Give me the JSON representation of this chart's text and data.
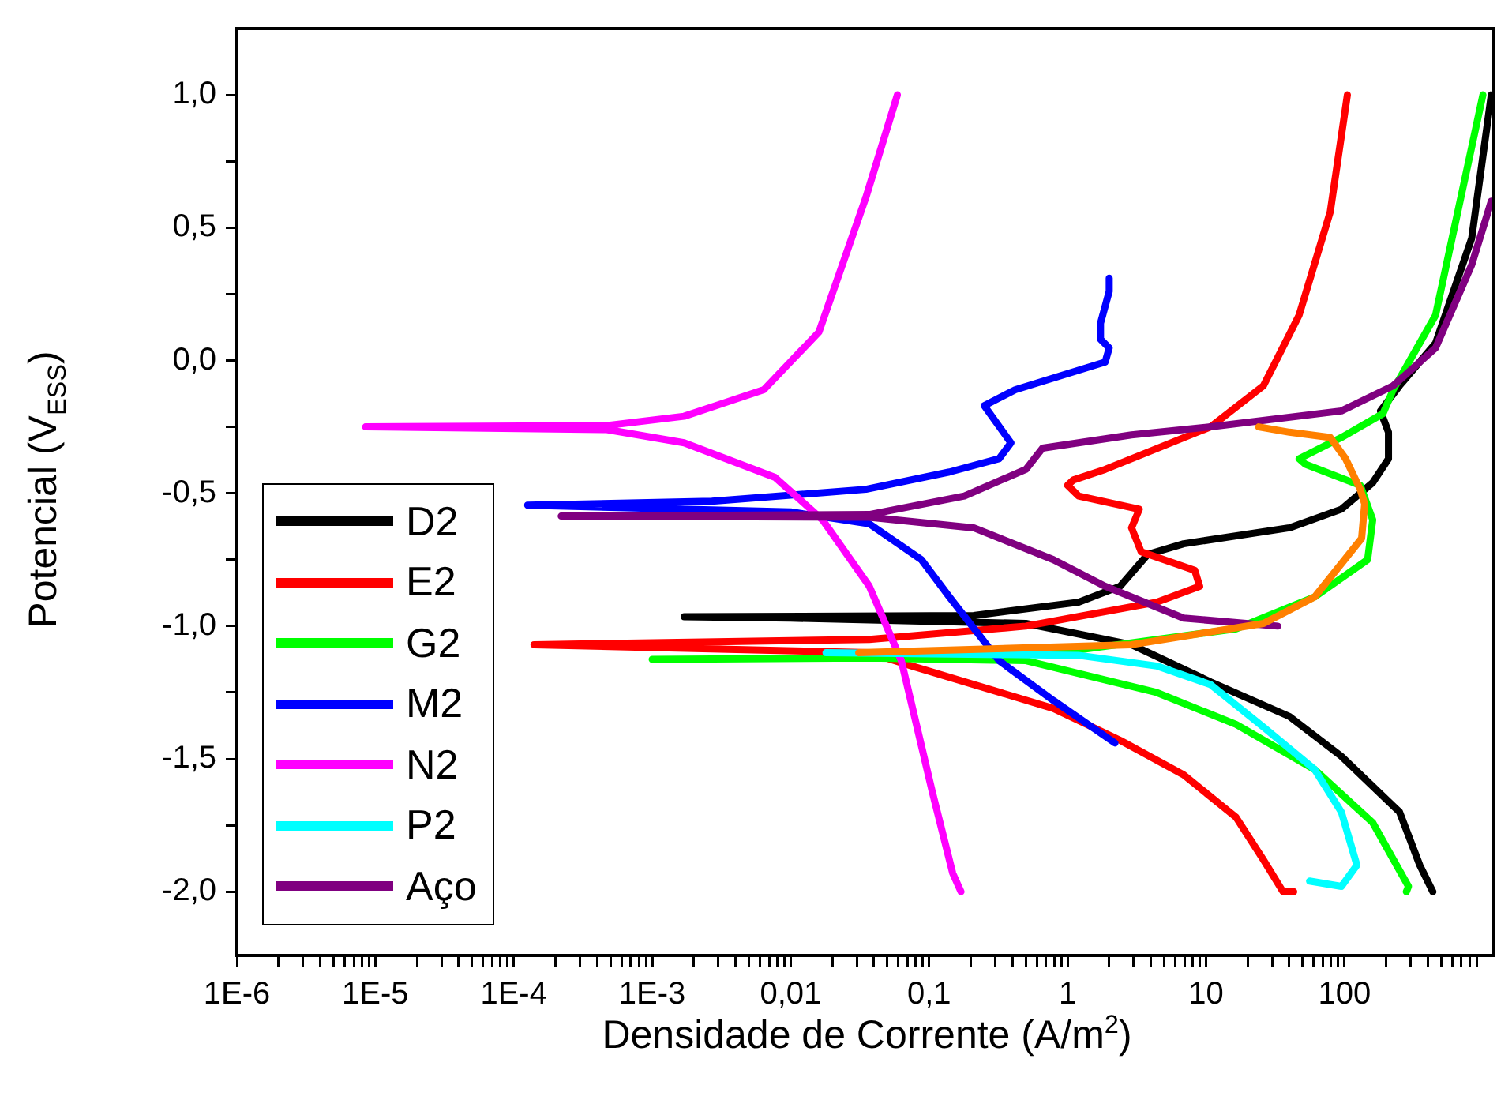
{
  "chart_data": {
    "type": "line",
    "xlabel": "Densidade de Corrente (A/m$^{2}$)",
    "ylabel": "Potencial (V$_{ESS}$)",
    "log": "x",
    "xlim": [
      1e-06,
      1200
    ],
    "ylim": [
      -2.24,
      1.25
    ],
    "xticks": [
      {
        "value": 1e-06,
        "label": "1E-6"
      },
      {
        "value": 2e-06,
        "label": null
      },
      {
        "value": 3e-06,
        "label": null
      },
      {
        "value": 4e-06,
        "label": null
      },
      {
        "value": 5e-06,
        "label": null
      },
      {
        "value": 6e-06,
        "label": null
      },
      {
        "value": 7e-06,
        "label": null
      },
      {
        "value": 8e-06,
        "label": null
      },
      {
        "value": 9e-06,
        "label": null
      },
      {
        "value": 1e-05,
        "label": "1E-5"
      },
      {
        "value": 2e-05,
        "label": null
      },
      {
        "value": 3e-05,
        "label": null
      },
      {
        "value": 4e-05,
        "label": null
      },
      {
        "value": 5e-05,
        "label": null
      },
      {
        "value": 6e-05,
        "label": null
      },
      {
        "value": 7e-05,
        "label": null
      },
      {
        "value": 8e-05,
        "label": null
      },
      {
        "value": 9e-05,
        "label": null
      },
      {
        "value": 0.0001,
        "label": "1E-4"
      },
      {
        "value": 0.0002,
        "label": null
      },
      {
        "value": 0.0003,
        "label": null
      },
      {
        "value": 0.0004,
        "label": null
      },
      {
        "value": 0.0005,
        "label": null
      },
      {
        "value": 0.0006,
        "label": null
      },
      {
        "value": 0.0007,
        "label": null
      },
      {
        "value": 0.0008,
        "label": null
      },
      {
        "value": 0.0009,
        "label": null
      },
      {
        "value": 0.001,
        "label": "1E-3"
      },
      {
        "value": 0.002,
        "label": null
      },
      {
        "value": 0.003,
        "label": null
      },
      {
        "value": 0.004,
        "label": null
      },
      {
        "value": 0.005,
        "label": null
      },
      {
        "value": 0.006,
        "label": null
      },
      {
        "value": 0.007,
        "label": null
      },
      {
        "value": 0.008,
        "label": null
      },
      {
        "value": 0.009,
        "label": null
      },
      {
        "value": 0.01,
        "label": "0,01"
      },
      {
        "value": 0.02,
        "label": null
      },
      {
        "value": 0.03,
        "label": null
      },
      {
        "value": 0.04,
        "label": null
      },
      {
        "value": 0.05,
        "label": null
      },
      {
        "value": 0.06,
        "label": null
      },
      {
        "value": 0.07,
        "label": null
      },
      {
        "value": 0.08,
        "label": null
      },
      {
        "value": 0.09,
        "label": null
      },
      {
        "value": 0.1,
        "label": "0,1"
      },
      {
        "value": 0.2,
        "label": null
      },
      {
        "value": 0.3,
        "label": null
      },
      {
        "value": 0.4,
        "label": null
      },
      {
        "value": 0.5,
        "label": null
      },
      {
        "value": 0.6,
        "label": null
      },
      {
        "value": 0.7,
        "label": null
      },
      {
        "value": 0.8,
        "label": null
      },
      {
        "value": 0.9,
        "label": null
      },
      {
        "value": 1,
        "label": "1"
      },
      {
        "value": 2,
        "label": null
      },
      {
        "value": 3,
        "label": null
      },
      {
        "value": 4,
        "label": null
      },
      {
        "value": 5,
        "label": null
      },
      {
        "value": 6,
        "label": null
      },
      {
        "value": 7,
        "label": null
      },
      {
        "value": 8,
        "label": null
      },
      {
        "value": 9,
        "label": null
      },
      {
        "value": 10,
        "label": "10"
      },
      {
        "value": 20,
        "label": null
      },
      {
        "value": 30,
        "label": null
      },
      {
        "value": 40,
        "label": null
      },
      {
        "value": 50,
        "label": null
      },
      {
        "value": 60,
        "label": null
      },
      {
        "value": 70,
        "label": null
      },
      {
        "value": 80,
        "label": null
      },
      {
        "value": 90,
        "label": null
      },
      {
        "value": 100,
        "label": "100"
      },
      {
        "value": 200,
        "label": null
      },
      {
        "value": 300,
        "label": null
      },
      {
        "value": 400,
        "label": null
      },
      {
        "value": 500,
        "label": null
      },
      {
        "value": 600,
        "label": null
      },
      {
        "value": 700,
        "label": null
      },
      {
        "value": 800,
        "label": null
      },
      {
        "value": 900,
        "label": null
      }
    ],
    "yticks": [
      {
        "value": -2,
        "label": "-2,0"
      },
      {
        "value": -1.75,
        "label": null
      },
      {
        "value": -1.5,
        "label": "-1,5"
      },
      {
        "value": -1.25,
        "label": null
      },
      {
        "value": -1,
        "label": "-1,0"
      },
      {
        "value": -0.75,
        "label": null
      },
      {
        "value": -0.5,
        "label": "-0,5"
      },
      {
        "value": -0.25,
        "label": null
      },
      {
        "value": 0,
        "label": "0,0"
      },
      {
        "value": 0.25,
        "label": null
      },
      {
        "value": 0.5,
        "label": "0,5"
      },
      {
        "value": 0.75,
        "label": null
      },
      {
        "value": 1,
        "label": "1,0"
      }
    ],
    "legend": "bottom left",
    "marker": "none",
    "line_style": "solid",
    "series": [
      {
        "name": "D2",
        "color": "#000000",
        "x": [
          435,
          350,
          250,
          95,
          40,
          10.8,
          2.9,
          0.5,
          0.01,
          0.0017,
          0.21,
          1.2,
          2.4,
          3.8,
          6.9,
          40,
          95,
          160,
          208,
          208,
          182,
          250,
          455,
          830,
          1150
        ],
        "values": [
          -2.0,
          -1.9,
          -1.7,
          -1.49,
          -1.34,
          -1.21,
          -1.07,
          -0.99,
          -0.97,
          -0.965,
          -0.96,
          -0.91,
          -0.85,
          -0.73,
          -0.69,
          -0.63,
          -0.56,
          -0.46,
          -0.37,
          -0.27,
          -0.19,
          -0.095,
          0.065,
          0.46,
          1.0
        ]
      },
      {
        "name": "E2",
        "color": "#ff0000",
        "x": [
          43,
          36,
          26,
          16.5,
          6.9,
          2.4,
          0.79,
          0.21,
          0.075,
          0.037,
          0.00014,
          0.037,
          0.5,
          4.4,
          9.0,
          8.3,
          3.4,
          2.9,
          3.3,
          1.2,
          1.0,
          1.1,
          1.87,
          10.8,
          26,
          47,
          79,
          105
        ],
        "values": [
          -2.0,
          -2.0,
          -1.88,
          -1.72,
          -1.56,
          -1.43,
          -1.31,
          -1.22,
          -1.15,
          -1.1,
          -1.07,
          -1.05,
          -1.0,
          -0.91,
          -0.85,
          -0.79,
          -0.72,
          -0.63,
          -0.56,
          -0.51,
          -0.47,
          -0.45,
          -0.41,
          -0.25,
          -0.095,
          0.17,
          0.56,
          1.0
        ]
      },
      {
        "name": "G2",
        "color": "#00ff00",
        "x": [
          280,
          290,
          160,
          61,
          16.5,
          4.4,
          0.5,
          0.037,
          0.001,
          0.037,
          1.2,
          16.5,
          61,
          147,
          160,
          130,
          52,
          47,
          95,
          190,
          225,
          455,
          1000
        ],
        "values": [
          -2.0,
          -1.98,
          -1.74,
          -1.54,
          -1.37,
          -1.25,
          -1.13,
          -1.12,
          -1.125,
          -1.12,
          -1.09,
          -1.01,
          -0.89,
          -0.75,
          -0.6,
          -0.47,
          -0.39,
          -0.37,
          -0.29,
          -0.2,
          -0.11,
          0.17,
          1.0
        ]
      },
      {
        "name": "M2",
        "color": "#0000ff",
        "x": [
          2.2,
          0.79,
          0.32,
          0.14,
          0.088,
          0.037,
          0.01,
          0.000126,
          0.0027,
          0.035,
          0.14,
          0.32,
          0.39,
          0.25,
          0.42,
          1.87,
          2.0,
          1.73,
          1.73,
          2.0,
          2.0
        ],
        "values": [
          -1.44,
          -1.28,
          -1.13,
          -0.89,
          -0.75,
          -0.615,
          -0.57,
          -0.545,
          -0.53,
          -0.485,
          -0.42,
          -0.37,
          -0.31,
          -0.17,
          -0.11,
          -0.006,
          0.047,
          0.08,
          0.14,
          0.26,
          0.31
        ]
      },
      {
        "name": "N2",
        "color": "#ff00ff",
        "x": [
          0.17,
          0.148,
          0.105,
          0.063,
          0.037,
          0.017,
          0.0077,
          0.0017,
          0.00047,
          8.5e-06,
          0.00047,
          0.0017,
          0.0064,
          0.016,
          0.035,
          0.059
        ],
        "values": [
          -2.0,
          -1.93,
          -1.62,
          -1.13,
          -0.85,
          -0.6,
          -0.44,
          -0.31,
          -0.26,
          -0.25,
          -0.245,
          -0.21,
          -0.11,
          0.107,
          0.615,
          1.0
        ]
      },
      {
        "name": "P2",
        "color": "#00ffff",
        "x": [
          0.018,
          1.2,
          4.4,
          10.8,
          26,
          61,
          95,
          123,
          95,
          56
        ],
        "values": [
          -1.1,
          -1.11,
          -1.15,
          -1.22,
          -1.38,
          -1.54,
          -1.7,
          -1.9,
          -1.98,
          -1.96
        ]
      },
      {
        "name": "Aço",
        "color": "#800080",
        "x": [
          33,
          6.9,
          1.87,
          0.79,
          0.21,
          0.037,
          0.00022,
          0.037,
          0.18,
          0.5,
          0.66,
          2.9,
          10.8,
          95,
          225,
          455,
          830,
          1150
        ],
        "values": [
          -1.0,
          -0.97,
          -0.85,
          -0.75,
          -0.63,
          -0.59,
          -0.586,
          -0.58,
          -0.51,
          -0.41,
          -0.33,
          -0.28,
          -0.25,
          -0.19,
          -0.095,
          0.047,
          0.36,
          0.6
        ]
      },
      {
        "color": "#ff8000",
        "x": [
          0.031,
          2.9,
          26,
          61,
          133,
          140,
          130,
          102,
          79,
          40,
          24
        ],
        "values": [
          -1.1,
          -1.07,
          -0.99,
          -0.89,
          -0.67,
          -0.54,
          -0.485,
          -0.37,
          -0.29,
          -0.27,
          -0.25
        ]
      }
    ]
  }
}
